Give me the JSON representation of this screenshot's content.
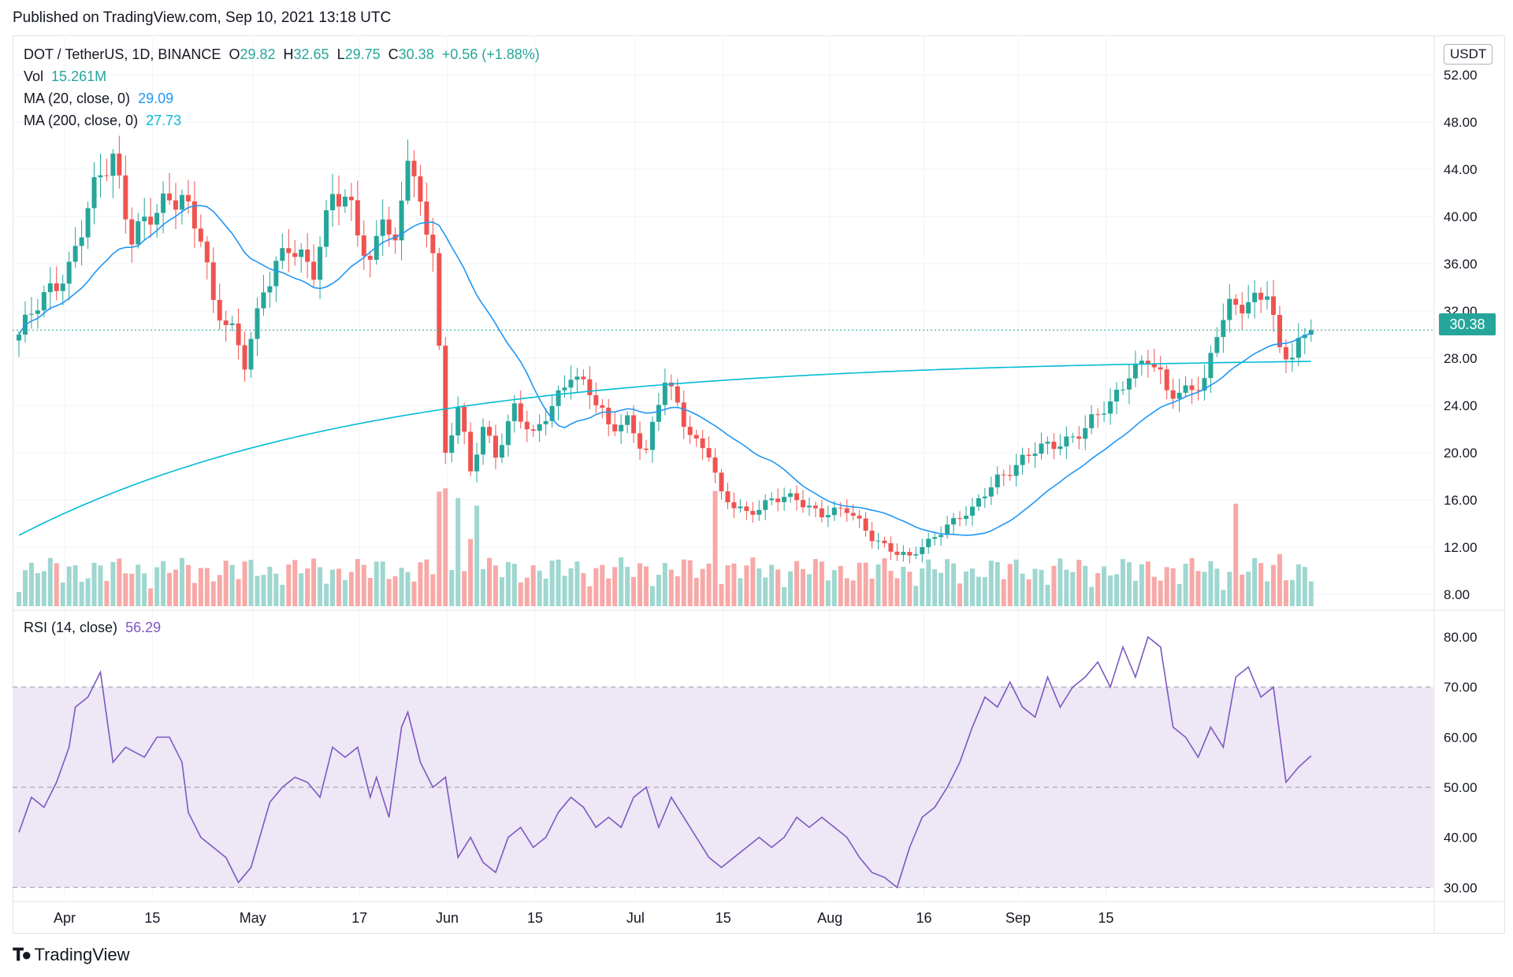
{
  "header": {
    "published": "Published on TradingView.com, Sep 10, 2021 13:18 UTC"
  },
  "legend": {
    "symbol": "DOT / TetherUS, 1D, BINANCE",
    "o_label": "O",
    "o": "29.82",
    "h_label": "H",
    "h": "32.65",
    "l_label": "L",
    "l": "29.75",
    "c_label": "C",
    "c": "30.38",
    "change": "+0.56 (+1.88%)",
    "vol_label": "Vol",
    "vol": "15.261M",
    "ma20_label": "MA (20, close, 0)",
    "ma20": "29.09",
    "ma200_label": "MA (200, close, 0)",
    "ma200": "27.73",
    "rsi_label": "RSI (14, close)",
    "rsi": "56.29"
  },
  "currency_badge": "USDT",
  "last_price": "30.38",
  "footer": {
    "brand": "TradingView",
    "icon": "tradingview-logo-icon"
  },
  "colors": {
    "up": "#26a69a",
    "down": "#ef5350",
    "ma20": "#2196f3",
    "ma200": "#00bcd4",
    "rsi": "#7e57c2",
    "rsi_band": "#ede7f6"
  },
  "chart_data": [
    {
      "type": "candlestick",
      "x_axis": {
        "tick_labels": [
          "Apr",
          "15",
          "May",
          "17",
          "Jun",
          "15",
          "Jul",
          "15",
          "Aug",
          "16",
          "Sep",
          "15"
        ]
      },
      "y_axis": {
        "tick_labels": [
          "8.00",
          "12.00",
          "16.00",
          "20.00",
          "24.00",
          "28.00",
          "32.00",
          "36.00",
          "40.00",
          "44.00",
          "48.00",
          "52.00"
        ],
        "ylim": [
          7,
          53
        ]
      },
      "close_anchors": [
        [
          0,
          30
        ],
        [
          4,
          33
        ],
        [
          8,
          36
        ],
        [
          12,
          42
        ],
        [
          15,
          45
        ],
        [
          18,
          39
        ],
        [
          22,
          40
        ],
        [
          26,
          42
        ],
        [
          29,
          39
        ],
        [
          31,
          32
        ],
        [
          34,
          30
        ],
        [
          36,
          28
        ],
        [
          39,
          34
        ],
        [
          43,
          37
        ],
        [
          47,
          36
        ],
        [
          50,
          42
        ],
        [
          53,
          40
        ],
        [
          56,
          36
        ],
        [
          58,
          41
        ],
        [
          60,
          37
        ],
        [
          62,
          45
        ],
        [
          64,
          40
        ],
        [
          66,
          38
        ],
        [
          68,
          20
        ],
        [
          70,
          24
        ],
        [
          72,
          18
        ],
        [
          74,
          22
        ],
        [
          76,
          20
        ],
        [
          79,
          24
        ],
        [
          82,
          21
        ],
        [
          85,
          24
        ],
        [
          88,
          27
        ],
        [
          91,
          25
        ],
        [
          94,
          22
        ],
        [
          97,
          23
        ],
        [
          100,
          20
        ],
        [
          103,
          26
        ],
        [
          106,
          23
        ],
        [
          108,
          21
        ],
        [
          110,
          20
        ],
        [
          112,
          16
        ],
        [
          116,
          15
        ],
        [
          120,
          16
        ],
        [
          124,
          16
        ],
        [
          128,
          15
        ],
        [
          132,
          15
        ],
        [
          136,
          13
        ],
        [
          140,
          11.5
        ],
        [
          142,
          11
        ],
        [
          145,
          12.5
        ],
        [
          148,
          14
        ],
        [
          152,
          15
        ],
        [
          156,
          18
        ],
        [
          159,
          19
        ],
        [
          162,
          20
        ],
        [
          166,
          21
        ],
        [
          170,
          22
        ],
        [
          174,
          24
        ],
        [
          177,
          27
        ],
        [
          180,
          28
        ],
        [
          183,
          25
        ],
        [
          185,
          25
        ],
        [
          187,
          26
        ],
        [
          189,
          26
        ],
        [
          191,
          30
        ],
        [
          193,
          32
        ],
        [
          196,
          33
        ],
        [
          199,
          34
        ],
        [
          201,
          28
        ],
        [
          203,
          28
        ],
        [
          205,
          30
        ],
        [
          206,
          30.38
        ]
      ],
      "volume": {
        "label": "Vol",
        "last": "15.261M"
      },
      "series": [
        {
          "name": "MA (20, close, 0)",
          "last": 29.09
        },
        {
          "name": "MA (200, close, 0)",
          "last": 27.73
        }
      ],
      "last_close": 30.38
    },
    {
      "type": "line",
      "name": "RSI (14, close)",
      "y_axis": {
        "tick_labels": [
          "30.00",
          "40.00",
          "50.00",
          "60.00",
          "70.00",
          "80.00"
        ],
        "ylim": [
          28,
          83
        ]
      },
      "band": [
        30,
        70
      ],
      "midline": 50,
      "x": [
        0,
        2,
        4,
        6,
        8,
        9,
        11,
        13,
        15,
        17,
        20,
        22,
        24,
        26,
        27,
        29,
        31,
        33,
        35,
        37,
        40,
        42,
        44,
        46,
        48,
        50,
        52,
        54,
        56,
        57,
        59,
        61,
        62,
        64,
        66,
        68,
        70,
        72,
        74,
        76,
        78,
        80,
        82,
        84,
        86,
        88,
        90,
        92,
        94,
        96,
        98,
        100,
        102,
        104,
        106,
        108,
        110,
        112,
        114,
        116,
        118,
        120,
        122,
        124,
        126,
        128,
        130,
        132,
        134,
        136,
        138,
        140,
        142,
        144,
        146,
        148,
        150,
        152,
        154,
        156,
        158,
        160,
        162,
        164,
        166,
        168,
        170,
        172,
        174,
        176,
        178,
        180,
        182,
        184,
        186,
        188,
        190,
        192,
        194,
        196,
        198,
        200,
        202,
        204,
        206
      ],
      "values": [
        41,
        48,
        46,
        51,
        58,
        66,
        68,
        73,
        55,
        58,
        56,
        60,
        60,
        55,
        45,
        40,
        38,
        36,
        31,
        34,
        47,
        50,
        52,
        51,
        48,
        58,
        56,
        58,
        48,
        52,
        44,
        62,
        65,
        55,
        50,
        52,
        36,
        40,
        35,
        33,
        40,
        42,
        38,
        40,
        45,
        48,
        46,
        42,
        44,
        42,
        48,
        50,
        42,
        48,
        44,
        40,
        36,
        34,
        36,
        38,
        40,
        38,
        40,
        44,
        42,
        44,
        42,
        40,
        36,
        33,
        32,
        30,
        38,
        44,
        46,
        50,
        55,
        62,
        68,
        66,
        71,
        66,
        64,
        72,
        66,
        70,
        72,
        75,
        70,
        78,
        72,
        80,
        78,
        62,
        60,
        56,
        62,
        58,
        72,
        74,
        68,
        70,
        51,
        54,
        56.29
      ]
    }
  ]
}
